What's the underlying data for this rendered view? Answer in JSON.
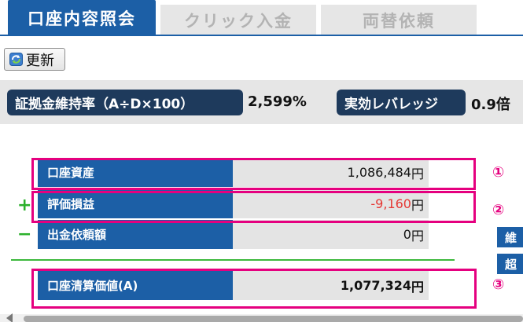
{
  "tabs": [
    {
      "label": "口座内容照会",
      "active": true
    },
    {
      "label": "クリック入金",
      "active": false
    },
    {
      "label": "両替依頼",
      "active": false
    }
  ],
  "toolbar": {
    "refresh_label": "更新",
    "refresh_icon": "refresh-icon"
  },
  "ratios": {
    "margin_ratio_label": "証拠金維持率（A÷D×100）",
    "margin_ratio_value": "2,599%",
    "leverage_label": "実効レバレッジ",
    "leverage_value": "0.9倍"
  },
  "rows": [
    {
      "sign": "",
      "label": "口座資産",
      "value": "1,086,484",
      "unit": "円",
      "marker": "①"
    },
    {
      "sign": "+",
      "label": "評価損益",
      "value": "-9,160",
      "unit": "円",
      "marker": "②"
    },
    {
      "sign": "−",
      "label": "出金依頼額",
      "value": "0",
      "unit": "円"
    },
    {
      "label": "口座清算価値(A)",
      "value": "1,077,324",
      "unit": "円",
      "marker": "③"
    }
  ],
  "edge_labels": [
    "維",
    "超"
  ],
  "colors": {
    "primary": "#1c5fa6",
    "badge": "#1e3a5c",
    "highlight": "#e5007f",
    "negative": "#e53935",
    "positive_sign": "#2bb02b"
  }
}
